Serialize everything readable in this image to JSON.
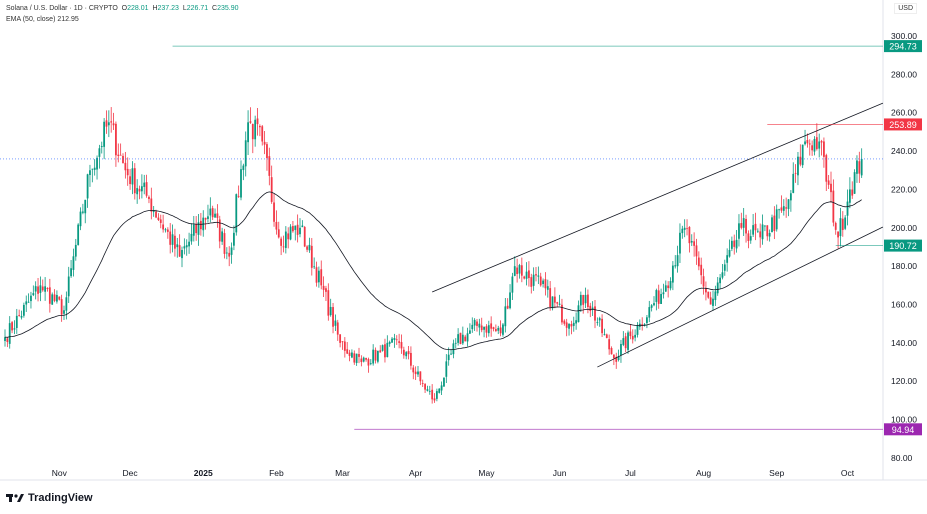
{
  "header": {
    "symbol": "Solana / U.S. Dollar · 1D · CRYPTO",
    "o_label": "O",
    "o": "228.01",
    "h_label": "H",
    "h": "237.23",
    "l_label": "L",
    "l": "226.71",
    "c_label": "C",
    "c": "235.90",
    "ema_label": "EMA (50, close)",
    "ema": "212.95",
    "currency": "USD"
  },
  "brand": "TradingView",
  "colors": {
    "up": "#089981",
    "down": "#f23645",
    "upAlt": "#2962ff",
    "ema": "#131722",
    "teal": "#089981",
    "pink": "#e91e63",
    "purple": "#9c27b0",
    "grid": "#f0f3fa"
  },
  "chart_data": {
    "type": "candlestick",
    "title": "Solana / U.S. Dollar · 1D",
    "ylim": [
      75,
      310
    ],
    "y_ticks": [
      80,
      100,
      120,
      140,
      160,
      180,
      200,
      220,
      240,
      260,
      280,
      300
    ],
    "y_tick_labels": [
      "80.00",
      "100.00",
      "120.00",
      "140.00",
      "160.00",
      "180.00",
      "200.00",
      "220.00",
      "240.00",
      "260.00",
      "280.00",
      "300.00"
    ],
    "x_days": 365,
    "x_ticks": [
      {
        "day": 23,
        "label": "Nov"
      },
      {
        "day": 53,
        "label": "Dec"
      },
      {
        "day": 84,
        "label": "2025"
      },
      {
        "day": 115,
        "label": "Feb"
      },
      {
        "day": 143,
        "label": "Mar"
      },
      {
        "day": 174,
        "label": "Apr"
      },
      {
        "day": 204,
        "label": "May"
      },
      {
        "day": 235,
        "label": "Jun"
      },
      {
        "day": 265,
        "label": "Jul"
      },
      {
        "day": 296,
        "label": "Aug"
      },
      {
        "day": 327,
        "label": "Sep"
      },
      {
        "day": 357,
        "label": "Oct"
      }
    ],
    "close_anchors": [
      [
        0,
        143
      ],
      [
        15,
        170
      ],
      [
        25,
        157
      ],
      [
        36,
        230
      ],
      [
        44,
        255
      ],
      [
        51,
        230
      ],
      [
        61,
        215
      ],
      [
        74,
        185
      ],
      [
        87,
        210
      ],
      [
        95,
        185
      ],
      [
        103,
        255
      ],
      [
        109,
        245
      ],
      [
        116,
        195
      ],
      [
        125,
        200
      ],
      [
        134,
        170
      ],
      [
        142,
        140
      ],
      [
        151,
        130
      ],
      [
        159,
        135
      ],
      [
        167,
        140
      ],
      [
        176,
        120
      ],
      [
        182,
        110
      ],
      [
        191,
        140
      ],
      [
        201,
        150
      ],
      [
        210,
        145
      ],
      [
        216,
        180
      ],
      [
        227,
        170
      ],
      [
        239,
        150
      ],
      [
        246,
        165
      ],
      [
        258,
        132
      ],
      [
        269,
        150
      ],
      [
        280,
        170
      ],
      [
        288,
        200
      ],
      [
        299,
        160
      ],
      [
        312,
        200
      ],
      [
        320,
        195
      ],
      [
        331,
        210
      ],
      [
        339,
        245
      ],
      [
        345,
        245
      ],
      [
        353,
        195
      ],
      [
        358,
        220
      ],
      [
        363,
        236
      ]
    ],
    "ema_period": 50,
    "last_price": 235.9,
    "levels": [
      {
        "price": 294.73,
        "label": "294.73",
        "color": "#089981",
        "from_day": 71
      },
      {
        "price": 253.89,
        "label": "253.89",
        "color": "#f23645",
        "from_day": 323
      },
      {
        "price": 190.72,
        "label": "190.72",
        "color": "#089981",
        "from_day": 352
      },
      {
        "price": 94.94,
        "label": "94.94",
        "color": "#9c27b0",
        "from_day": 148
      }
    ],
    "trendlines": [
      {
        "name": "upper-channel",
        "p1": [
          181,
          166.5
        ],
        "p2": [
          372,
          265
        ]
      },
      {
        "name": "lower-channel",
        "p1": [
          251,
          127.4
        ],
        "p2": [
          372,
          200.4
        ]
      }
    ]
  }
}
